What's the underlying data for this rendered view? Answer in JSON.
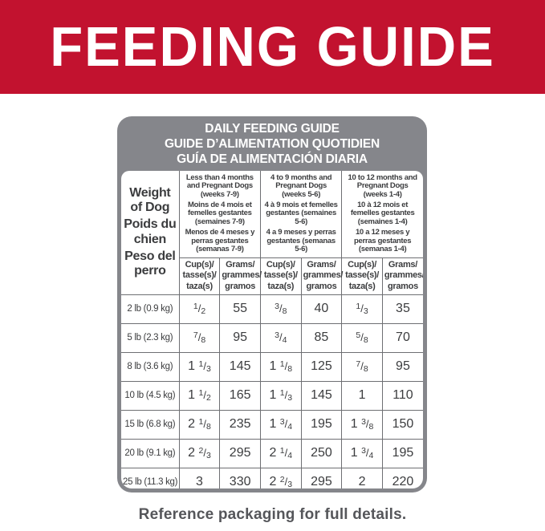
{
  "banner": {
    "title": "FEEDING GUIDE"
  },
  "card": {
    "title_lines": [
      "DAILY FEEDING GUIDE",
      "GUIDE D’ALIMENTATION QUOTIDIEN",
      "GUÍA DE ALIMENTACIÓN DIARIA"
    ]
  },
  "table": {
    "weight_header": {
      "en": "Weight of Dog",
      "fr": "Poids du chien",
      "es": "Peso del perro"
    },
    "age_groups": [
      {
        "en": "Less than 4 months and Pregnant Dogs (weeks 7-9)",
        "fr": "Moins de 4 mois et femelles gestantes (semaines 7-9)",
        "es": "Menos de 4 meses y perras gestantes (semanas 7-9)"
      },
      {
        "en": "4 to 9 months and Pregnant Dogs (weeks 5-6)",
        "fr": "4 à 9 mois et femelles gestantes (semaines 5-6)",
        "es": "4 a 9 meses y perras gestantes (semanas 5-6)"
      },
      {
        "en": "10 to 12 months and Pregnant Dogs (weeks 1-4)",
        "fr": "10 à 12 mois et femelles gestantes (semaines 1-4)",
        "es": "10 a 12 meses y perras gestantes (semanas 1-4)"
      }
    ],
    "unit_headers": {
      "cups": [
        "Cup(s)/",
        "tasse(s)/",
        "taza(s)"
      ],
      "grams": [
        "Grams/",
        "grammes/",
        "gramos"
      ]
    },
    "rows": [
      {
        "weight": "2 lb (0.9 kg)",
        "values": [
          "1/2",
          "55",
          "3/8",
          "40",
          "1/3",
          "35"
        ]
      },
      {
        "weight": "5 lb (2.3 kg)",
        "values": [
          "7/8",
          "95",
          "3/4",
          "85",
          "5/8",
          "70"
        ]
      },
      {
        "weight": "8 lb (3.6 kg)",
        "values": [
          "1 1/3",
          "145",
          "1 1/8",
          "125",
          "7/8",
          "95"
        ]
      },
      {
        "weight": "10 lb (4.5 kg)",
        "values": [
          "1 1/2",
          "165",
          "1 1/3",
          "145",
          "1",
          "110"
        ]
      },
      {
        "weight": "15 lb (6.8 kg)",
        "values": [
          "2 1/8",
          "235",
          "1 3/4",
          "195",
          "1 3/8",
          "150"
        ]
      },
      {
        "weight": "20 lb (9.1 kg)",
        "values": [
          "2 2/3",
          "295",
          "2 1/4",
          "250",
          "1 3/4",
          "195"
        ]
      },
      {
        "weight": "25 lb (11.3 kg)",
        "values": [
          "3",
          "330",
          "2 2/3",
          "295",
          "2",
          "220"
        ]
      }
    ]
  },
  "caption": "Reference packaging for full details.",
  "colors": {
    "banner_bg": "#c2122f",
    "banner_text": "#ffffff",
    "card_bg": "#85868b",
    "card_title_text": "#ffffff",
    "grid_line": "#6e6f73",
    "table_text": "#3b3c3e",
    "caption_text": "#55565a",
    "page_bg": "#ffffff"
  }
}
